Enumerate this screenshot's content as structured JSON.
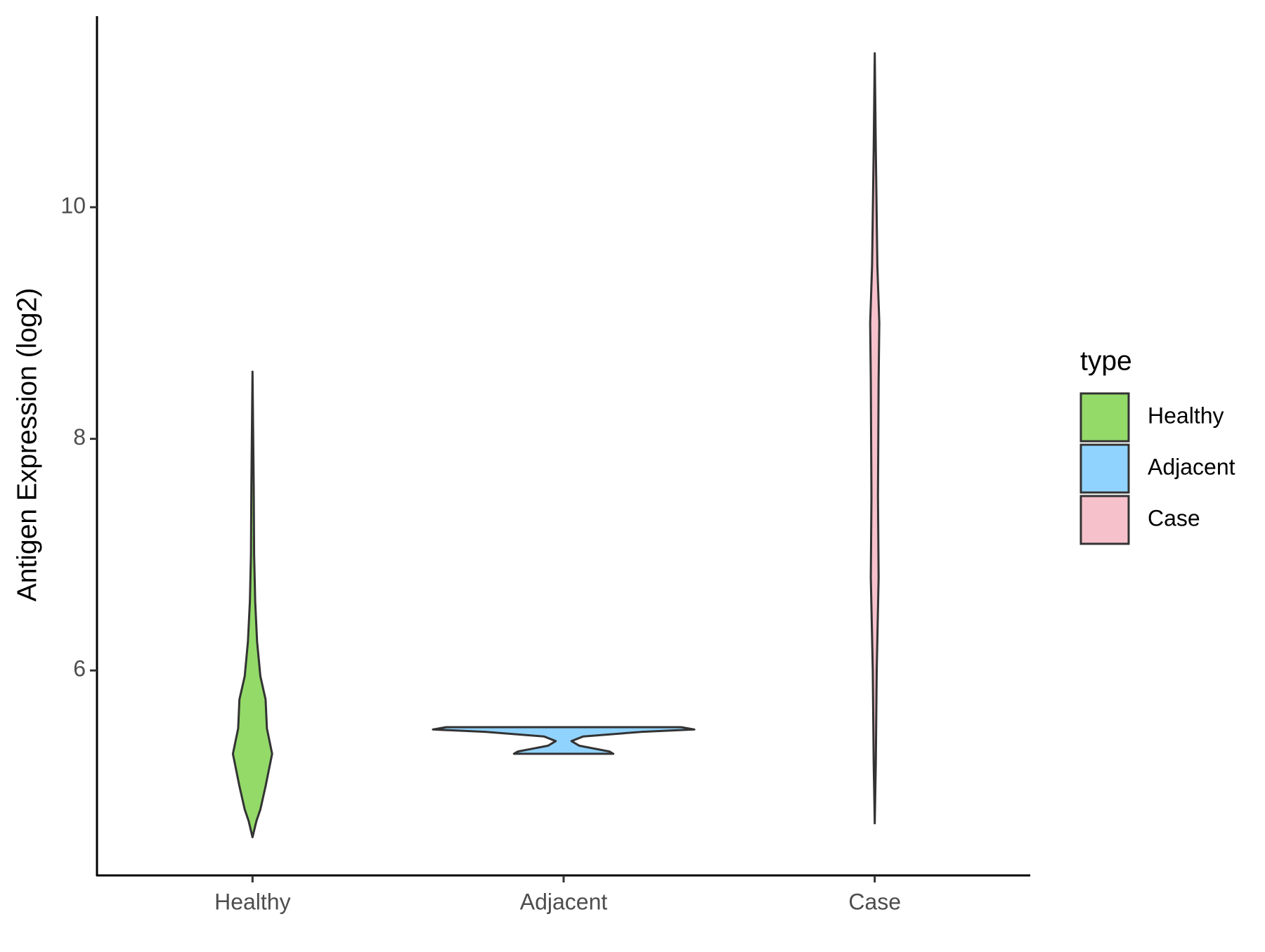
{
  "chart_data": {
    "type": "violin",
    "y_label": "Antigen Expression (log2)",
    "legend_title": "type",
    "categories": [
      "Healthy",
      "Adjacent",
      "Case"
    ],
    "ylim": [
      4.23,
      11.65
    ],
    "yticks": [
      6,
      8,
      10
    ],
    "series": [
      {
        "name": "Healthy",
        "color": "#93da69",
        "y": [
          4.56,
          4.7,
          4.8,
          5.0,
          5.28,
          5.5,
          5.75,
          5.95,
          6.25,
          6.6,
          7.0,
          7.6,
          8.58
        ],
        "density": [
          0,
          0.03,
          0.06,
          0.1,
          0.15,
          0.11,
          0.1,
          0.06,
          0.035,
          0.02,
          0.012,
          0.009,
          0
        ]
      },
      {
        "name": "Adjacent",
        "color": "#91d3ff",
        "y": [
          5.28,
          5.3,
          5.35,
          5.39,
          5.43,
          5.47,
          5.49,
          5.51
        ],
        "density": [
          0.38,
          0.35,
          0.12,
          0.06,
          0.15,
          0.6,
          1.0,
          0.9
        ]
      },
      {
        "name": "Case",
        "color": "#f7c1cc",
        "y": [
          4.68,
          5.2,
          6.0,
          6.8,
          7.5,
          8.5,
          9.0,
          9.5,
          10.5,
          11.33
        ],
        "density": [
          0,
          0.008,
          0.015,
          0.03,
          0.025,
          0.03,
          0.035,
          0.02,
          0.008,
          0
        ]
      }
    ]
  }
}
